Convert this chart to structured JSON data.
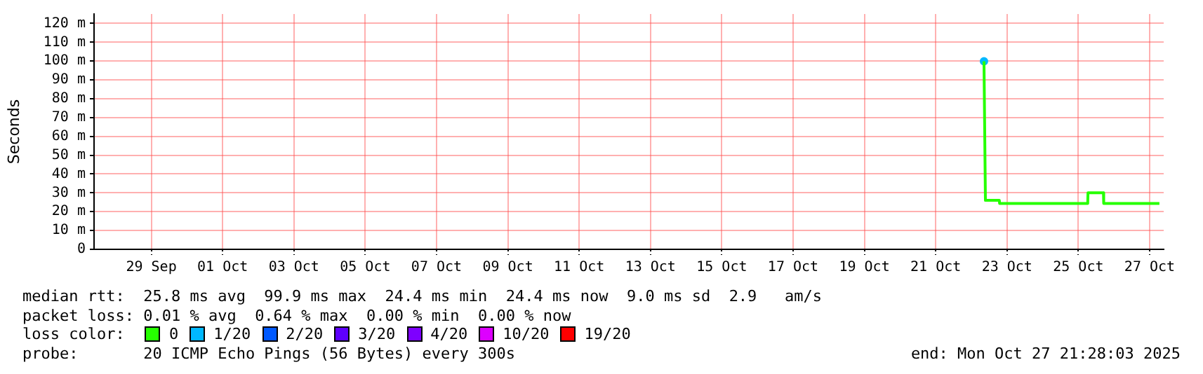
{
  "chart_data": {
    "type": "line",
    "ylabel": "Seconds",
    "legend_title": "loss color:",
    "legend": "bottom",
    "grid": true,
    "x": [
      "2025-10-22T20:30",
      "2025-10-22T21:28",
      "2025-10-23T06:50",
      "2025-10-23T07:00",
      "2025-10-25T18:20",
      "2025-10-25T18:30",
      "2025-10-26T04:55",
      "2025-10-26T05:05",
      "2025-10-27T18:35"
    ],
    "xlim": [
      "2025-09-27T21:28",
      "2025-10-27T21:28"
    ],
    "xticks": [
      {
        "value": "2025-09-29T12:00",
        "label": "29 Sep"
      },
      {
        "value": "2025-10-01T12:00",
        "label": "01 Oct"
      },
      {
        "value": "2025-10-03T12:00",
        "label": "03 Oct"
      },
      {
        "value": "2025-10-05T12:00",
        "label": "05 Oct"
      },
      {
        "value": "2025-10-07T12:00",
        "label": "07 Oct"
      },
      {
        "value": "2025-10-09T12:00",
        "label": "09 Oct"
      },
      {
        "value": "2025-10-11T12:00",
        "label": "11 Oct"
      },
      {
        "value": "2025-10-13T12:00",
        "label": "13 Oct"
      },
      {
        "value": "2025-10-15T12:00",
        "label": "15 Oct"
      },
      {
        "value": "2025-10-17T12:00",
        "label": "17 Oct"
      },
      {
        "value": "2025-10-19T12:00",
        "label": "19 Oct"
      },
      {
        "value": "2025-10-21T12:00",
        "label": "21 Oct"
      },
      {
        "value": "2025-10-23T12:00",
        "label": "23 Oct"
      },
      {
        "value": "2025-10-25T12:00",
        "label": "25 Oct"
      },
      {
        "value": "2025-10-27T12:00",
        "label": "27 Oct"
      }
    ],
    "ylim": [
      0,
      125
    ],
    "yticks": [
      0,
      {
        "value": 10,
        "label": "10 m"
      },
      {
        "value": 20,
        "label": "20 m"
      },
      {
        "value": 30,
        "label": "30 m"
      },
      {
        "value": 40,
        "label": "40 m"
      },
      {
        "value": 50,
        "label": "50 m"
      },
      {
        "value": 60,
        "label": "60 m"
      },
      {
        "value": 70,
        "label": "70 m"
      },
      {
        "value": 80,
        "label": "80 m"
      },
      {
        "value": 90,
        "label": "90 m"
      },
      {
        "value": 100,
        "label": "100 m"
      },
      {
        "value": 110,
        "label": "110 m"
      },
      {
        "value": 120,
        "label": "120 m"
      }
    ],
    "series": [
      {
        "name": "0",
        "color": "#26ff00",
        "values": [
          99.9,
          26,
          26,
          24.4,
          24.4,
          30,
          30,
          24.4,
          24.4
        ]
      },
      {
        "name": "1/20",
        "color": "#00b8ff",
        "type": "scatter",
        "values": [
          99.9,
          null,
          null,
          null,
          null,
          null,
          null,
          null,
          null
        ]
      },
      {
        "name": "2/20",
        "color": "#0059ff",
        "values": [
          null,
          null,
          null,
          null,
          null,
          null,
          null,
          null,
          null
        ]
      },
      {
        "name": "3/20",
        "color": "#5e00ff",
        "values": [
          null,
          null,
          null,
          null,
          null,
          null,
          null,
          null,
          null
        ]
      },
      {
        "name": "4/20",
        "color": "#7e00ff",
        "values": [
          null,
          null,
          null,
          null,
          null,
          null,
          null,
          null,
          null
        ]
      },
      {
        "name": "10/20",
        "color": "#dd00ff",
        "values": [
          null,
          null,
          null,
          null,
          null,
          null,
          null,
          null,
          null
        ]
      },
      {
        "name": "19/20",
        "color": "#ff0000",
        "values": [
          null,
          null,
          null,
          null,
          null,
          null,
          null,
          null,
          null
        ]
      }
    ],
    "annotations": [
      "median rtt:  25.8 ms avg  99.9 ms max  24.4 ms min  24.4 ms now  9.0 ms sd  2.9   am/s",
      "packet loss: 0.01 % avg  0.64 % max  0.00 % min  0.00 % now",
      "probe:       20 ICMP Echo Pings (56 Bytes) every 300s",
      "end: Mon Oct 27 21:28:03 2025"
    ]
  }
}
